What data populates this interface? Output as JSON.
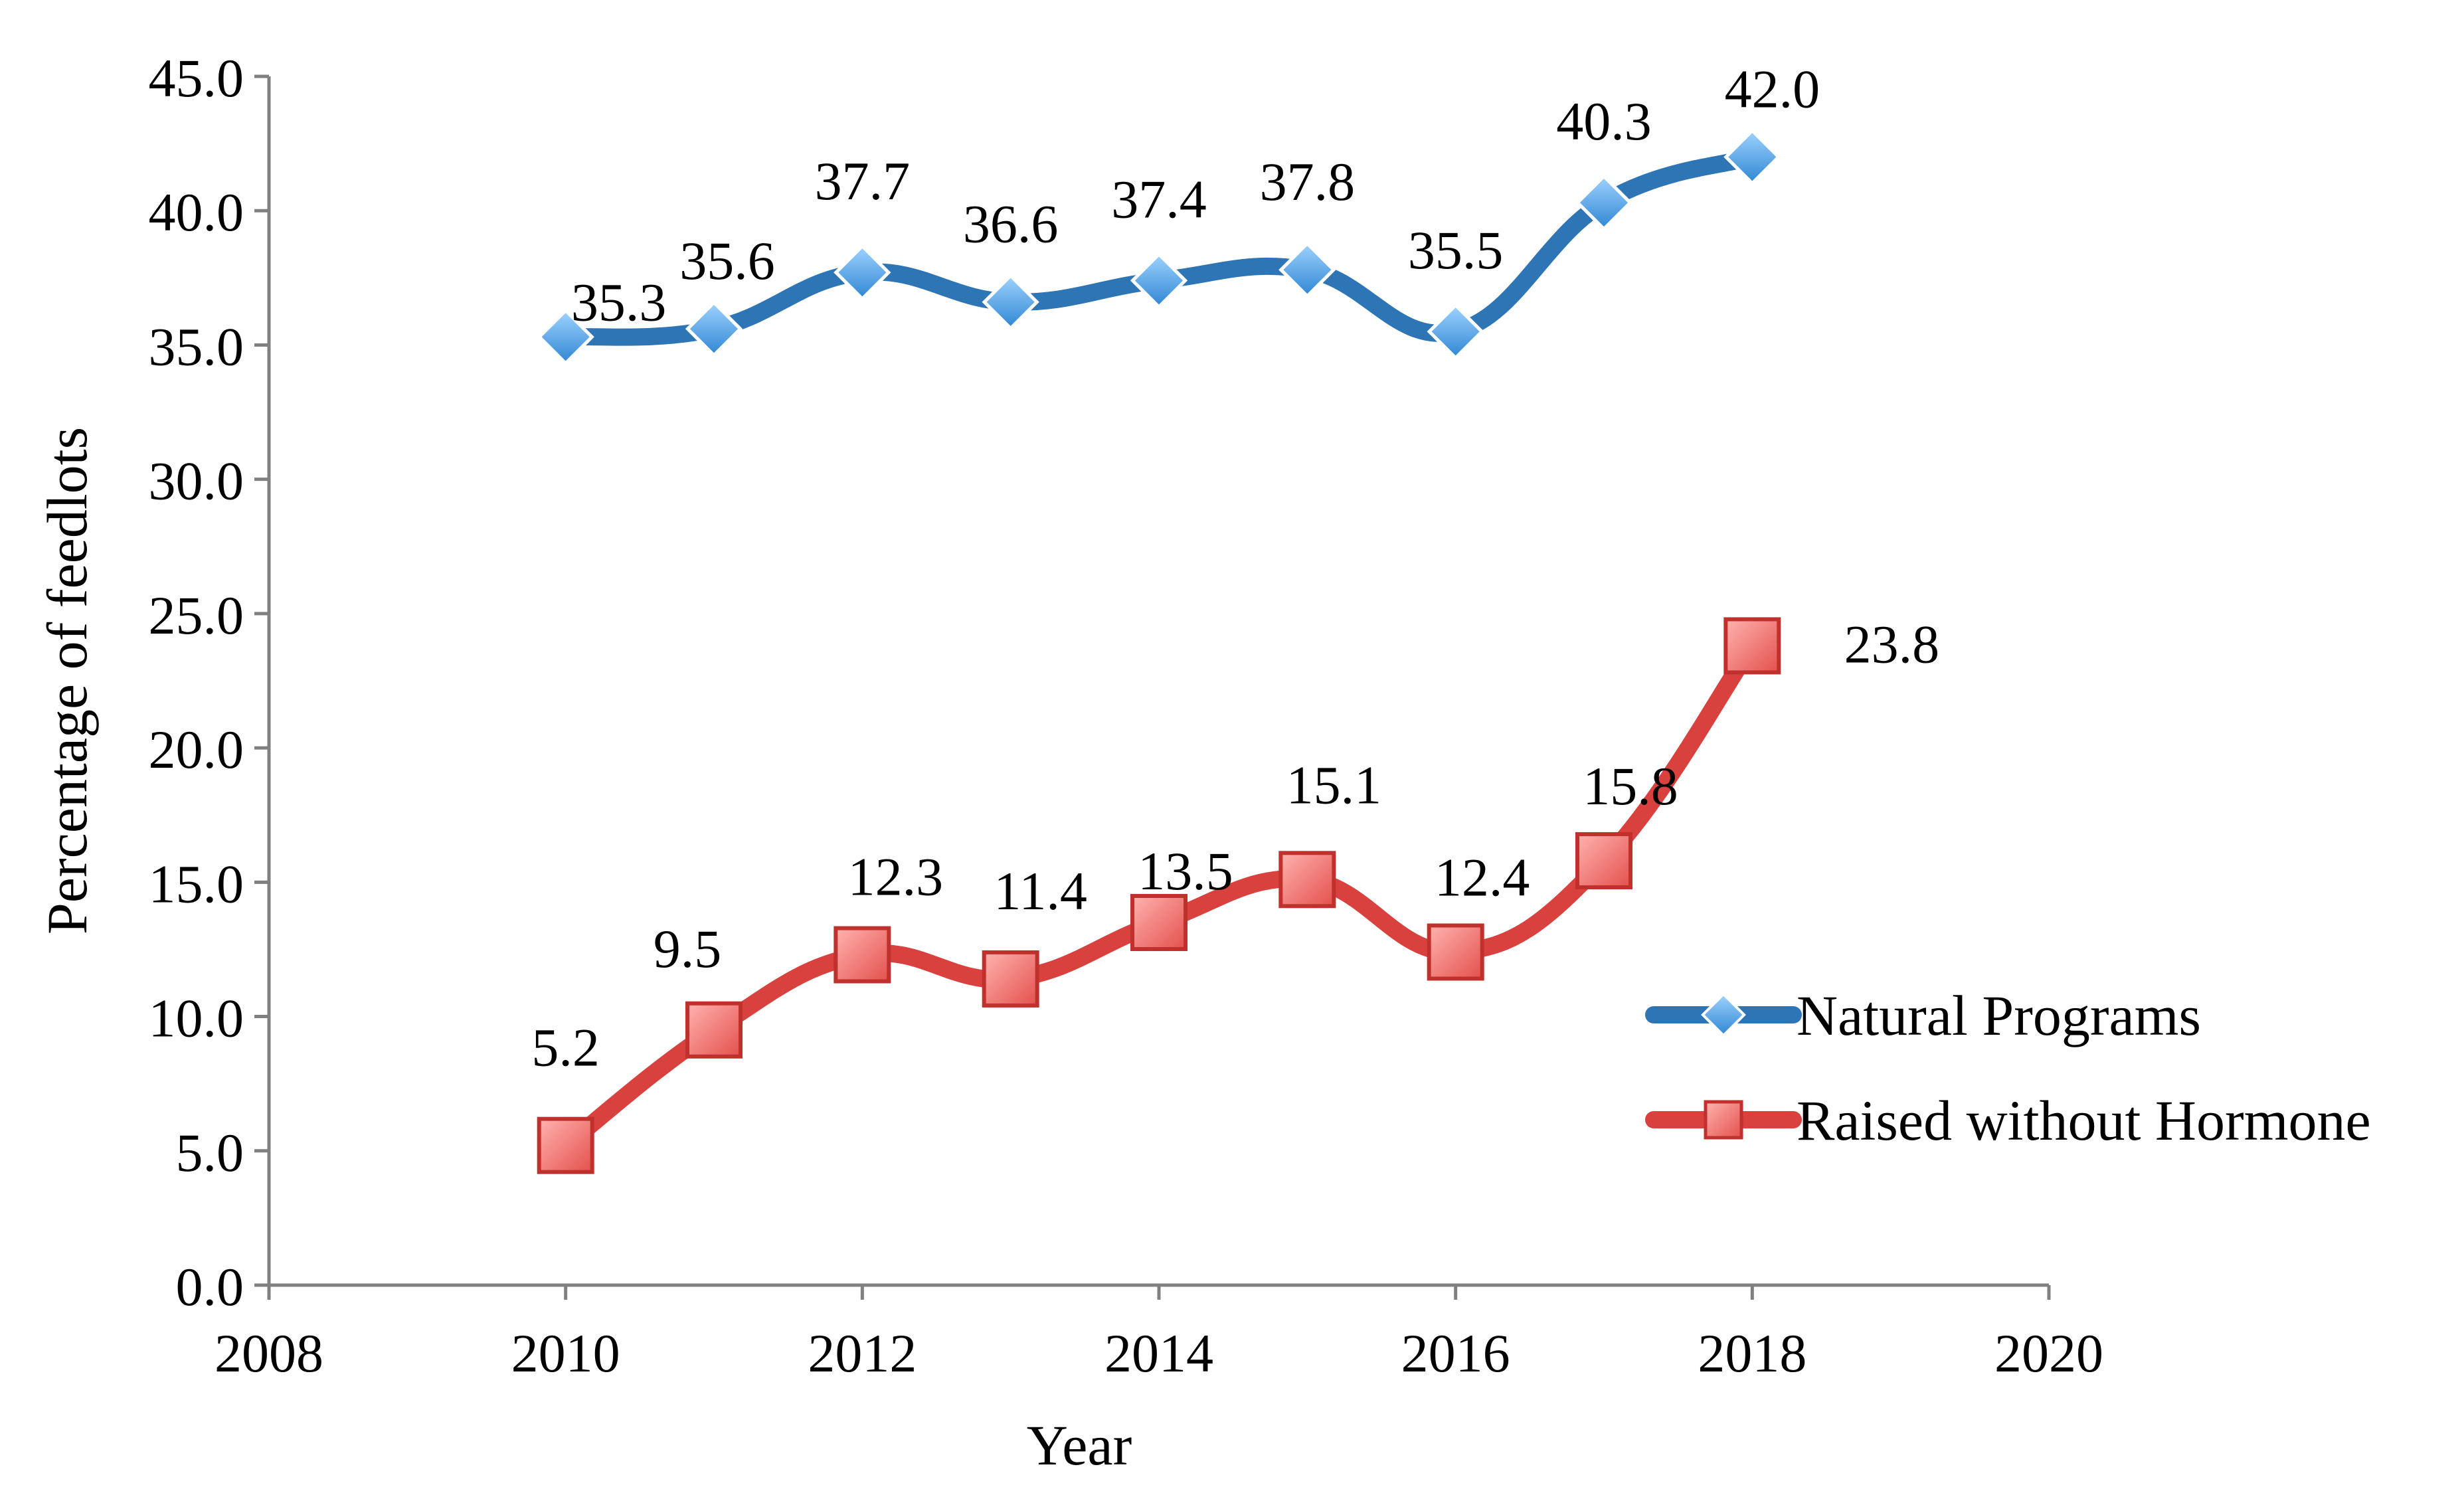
{
  "chart_data": {
    "type": "line",
    "title": "",
    "xlabel": "Year",
    "ylabel": "Percentage of feedlots",
    "xlim": [
      2008,
      2020
    ],
    "ylim": [
      0,
      45
    ],
    "x_ticks": [
      2008,
      2010,
      2012,
      2014,
      2016,
      2018,
      2020
    ],
    "y_ticks": [
      0,
      5,
      10,
      15,
      20,
      25,
      30,
      35,
      40,
      45
    ],
    "y_tick_labels": [
      "0.0",
      "5.0",
      "10.0",
      "15.0",
      "20.0",
      "25.0",
      "30.0",
      "35.0",
      "40.0",
      "45.0"
    ],
    "grid": false,
    "legend_position": "right",
    "x": [
      2010,
      2011,
      2012,
      2013,
      2014,
      2015,
      2016,
      2017,
      2018
    ],
    "series": [
      {
        "name": "Natural Programs",
        "color": "#2E75B6",
        "marker": "diamond",
        "values": [
          35.3,
          35.6,
          37.7,
          36.6,
          37.4,
          37.8,
          35.5,
          40.3,
          42.0
        ],
        "labels": [
          "35.3",
          "35.6",
          "37.7",
          "36.6",
          "37.4",
          "37.8",
          "35.5",
          "40.3",
          "42.0"
        ]
      },
      {
        "name": "Raised without Hormone",
        "color": "#D9413E",
        "marker": "square",
        "values": [
          5.2,
          9.5,
          12.3,
          11.4,
          13.5,
          15.1,
          12.4,
          15.8,
          23.8
        ],
        "labels": [
          "5.2",
          "9.5",
          "12.3",
          "11.4",
          "13.5",
          "15.1",
          "12.4",
          "15.8",
          "23.8"
        ]
      }
    ]
  }
}
